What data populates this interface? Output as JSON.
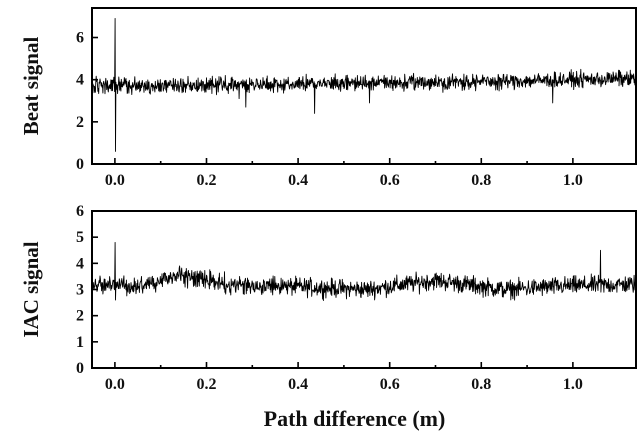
{
  "chart_data": [
    {
      "type": "line",
      "ylabel": "Beat signal",
      "xlabel": "",
      "xlim": [
        -0.05,
        1.14
      ],
      "ylim": [
        0,
        7.4
      ],
      "xticks": [
        0.0,
        0.2,
        0.4,
        0.6,
        0.8,
        1.0
      ],
      "xtick_labels": [
        "0.0",
        "0.2",
        "0.4",
        "0.6",
        "0.8",
        "1.0"
      ],
      "yticks": [
        0,
        2,
        4,
        6
      ],
      "ytick_labels": [
        "0",
        "2",
        "4",
        "6"
      ],
      "grid": false,
      "baseline": {
        "x": [
          0.0,
          0.2,
          0.4,
          0.6,
          0.8,
          1.0,
          1.14
        ],
        "y": [
          3.7,
          3.75,
          3.8,
          3.85,
          3.9,
          4.0,
          4.05
        ]
      },
      "noise_amplitude": 0.18,
      "spikes": [
        {
          "x": 0.0,
          "y_max": 6.9,
          "y_min": 0.6
        },
        {
          "x": 0.27,
          "y_max": 3.9,
          "y_min": 3.1
        },
        {
          "x": 0.285,
          "y_max": 3.9,
          "y_min": 2.7
        },
        {
          "x": 0.435,
          "y_max": 3.9,
          "y_min": 2.4
        },
        {
          "x": 0.555,
          "y_max": 3.95,
          "y_min": 2.9
        },
        {
          "x": 0.955,
          "y_max": 4.0,
          "y_min": 2.9
        },
        {
          "x": 1.1,
          "y_max": 4.45,
          "y_min": 3.9
        }
      ]
    },
    {
      "type": "line",
      "ylabel": "IAC signal",
      "xlabel": "Path difference (m)",
      "xlim": [
        -0.05,
        1.14
      ],
      "ylim": [
        0,
        6
      ],
      "xticks": [
        0.0,
        0.2,
        0.4,
        0.6,
        0.8,
        1.0
      ],
      "xtick_labels": [
        "0.0",
        "0.2",
        "0.4",
        "0.6",
        "0.8",
        "1.0"
      ],
      "yticks": [
        0,
        1,
        2,
        3,
        4,
        5,
        6
      ],
      "ytick_labels": [
        "0",
        "1",
        "2",
        "3",
        "4",
        "5",
        "6"
      ],
      "grid": false,
      "baseline": {
        "x": [
          -0.05,
          0.05,
          0.14,
          0.25,
          0.4,
          0.55,
          0.7,
          0.85,
          1.0,
          1.14
        ],
        "y": [
          3.2,
          3.15,
          3.55,
          3.2,
          3.1,
          3.0,
          3.35,
          3.0,
          3.15,
          3.2
        ]
      },
      "noise_amplitude": 0.17,
      "spikes": [
        {
          "x": 0.0,
          "y_max": 4.8,
          "y_min": 2.6
        },
        {
          "x": 1.06,
          "y_max": 4.5,
          "y_min": 2.9
        }
      ]
    }
  ]
}
